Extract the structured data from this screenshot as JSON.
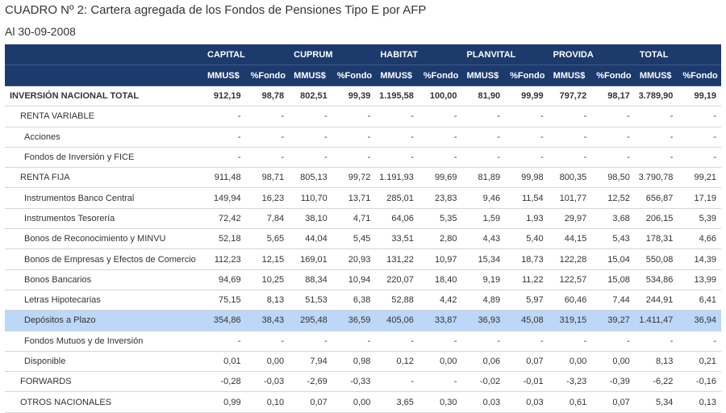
{
  "header": {
    "title": "CUADRO Nº 2: Cartera agregada de los Fondos de Pensiones Tipo E por AFP",
    "subtitle": "Al 30-09-2008"
  },
  "table": {
    "groups": [
      "CAPITAL",
      "CUPRUM",
      "HABITAT",
      "PLANVITAL",
      "PROVIDA",
      "TOTAL"
    ],
    "subheaders": [
      "MMUS$",
      "%Fondo",
      "MMUS$",
      "%Fondo",
      "MMUS$",
      "%Fondo",
      "MMUS$",
      "%Fondo",
      "MMUS$",
      "%Fondo",
      "MMUS$",
      "%Fondo"
    ],
    "rows": [
      [
        "INVERSIÓN NACIONAL TOTAL",
        "912,19",
        "98,78",
        "802,51",
        "99,39",
        "1.195,58",
        "100,00",
        "81,90",
        "99,99",
        "797,72",
        "98,17",
        "3.789,90",
        "99,19"
      ],
      [
        "RENTA VARIABLE",
        "-",
        "-",
        "-",
        "-",
        "-",
        "-",
        "-",
        "-",
        "-",
        "-",
        "-",
        "-"
      ],
      [
        "Acciones",
        "-",
        "-",
        "-",
        "-",
        "-",
        "-",
        "-",
        "-",
        "-",
        "-",
        "-",
        "-"
      ],
      [
        "Fondos de Inversión y FICE",
        "-",
        "-",
        "-",
        "-",
        "-",
        "-",
        "-",
        "-",
        "-",
        "-",
        "-",
        "-"
      ],
      [
        "RENTA FIJA",
        "911,48",
        "98,71",
        "805,13",
        "99,72",
        "1.191,93",
        "99,69",
        "81,89",
        "99,98",
        "800,35",
        "98,50",
        "3.790,78",
        "99,21"
      ],
      [
        "Instrumentos Banco Central",
        "149,94",
        "16,23",
        "110,70",
        "13,71",
        "285,01",
        "23,83",
        "9,46",
        "11,54",
        "101,77",
        "12,52",
        "656,87",
        "17,19"
      ],
      [
        "Instrumentos Tesorería",
        "72,42",
        "7,84",
        "38,10",
        "4,71",
        "64,06",
        "5,35",
        "1,59",
        "1,93",
        "29,97",
        "3,68",
        "206,15",
        "5,39"
      ],
      [
        "Bonos de Reconocimiento y MINVU",
        "52,18",
        "5,65",
        "44,04",
        "5,45",
        "33,51",
        "2,80",
        "4,43",
        "5,40",
        "44,15",
        "5,43",
        "178,31",
        "4,66"
      ],
      [
        "Bonos de Empresas y Efectos de Comercio",
        "112,23",
        "12,15",
        "169,01",
        "20,93",
        "131,22",
        "10,97",
        "15,34",
        "18,73",
        "122,28",
        "15,04",
        "550,08",
        "14,39"
      ],
      [
        "Bonos Bancarios",
        "94,69",
        "10,25",
        "88,34",
        "10,94",
        "220,07",
        "18,40",
        "9,19",
        "11,22",
        "122,57",
        "15,08",
        "534,86",
        "13,99"
      ],
      [
        "Letras Hipotecarias",
        "75,15",
        "8,13",
        "51,53",
        "6,38",
        "52,88",
        "4,42",
        "4,89",
        "5,97",
        "60,46",
        "7,44",
        "244,91",
        "6,41"
      ],
      [
        "Depósitos a Plazo",
        "354,86",
        "38,43",
        "295,48",
        "36,59",
        "405,06",
        "33,87",
        "36,93",
        "45,08",
        "319,15",
        "39,27",
        "1.411,47",
        "36,94"
      ],
      [
        "Fondos Mutuos y de Inversión",
        "-",
        "-",
        "-",
        "-",
        "-",
        "-",
        "-",
        "-",
        "-",
        "-",
        "-",
        "-"
      ],
      [
        "Disponible",
        "0,01",
        "0,00",
        "7,94",
        "0,98",
        "0,12",
        "0,00",
        "0,06",
        "0,07",
        "0,00",
        "0,00",
        "8,13",
        "0,21"
      ],
      [
        "FORWARDS",
        "-0,28",
        "-0,03",
        "-2,69",
        "-0,33",
        "-",
        "-",
        "-0,02",
        "-0,01",
        "-3,23",
        "-0,39",
        "-6,22",
        "-0,16"
      ],
      [
        "OTROS NACIONALES",
        "0,99",
        "0,10",
        "0,07",
        "0,00",
        "3,65",
        "0,30",
        "0,03",
        "0,03",
        "0,61",
        "0,07",
        "5,34",
        "0,13"
      ]
    ]
  }
}
